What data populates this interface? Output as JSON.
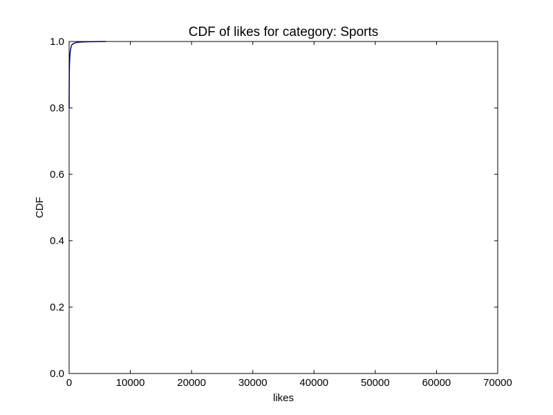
{
  "chart_data": {
    "type": "line",
    "title": "CDF of likes for category: Sports",
    "xlabel": "likes",
    "ylabel": "CDF",
    "xlim": [
      0,
      70000
    ],
    "ylim": [
      0.0,
      1.0
    ],
    "x_ticks": [
      "0",
      "10000",
      "20000",
      "30000",
      "40000",
      "50000",
      "60000",
      "70000"
    ],
    "y_ticks": [
      "0.0",
      "0.2",
      "0.4",
      "0.6",
      "0.8",
      "1.0"
    ],
    "grid": false,
    "legend": "none",
    "series": [
      {
        "color": "#000080",
        "x": [
          0,
          10,
          30,
          60,
          100,
          150,
          200,
          300,
          400,
          500,
          700,
          1000,
          1500,
          2000,
          3000,
          4000,
          5000,
          6000
        ],
        "y": [
          0.8,
          0.86,
          0.9,
          0.93,
          0.95,
          0.962,
          0.972,
          0.982,
          0.988,
          0.991,
          0.994,
          0.996,
          0.998,
          0.9985,
          0.9992,
          0.9996,
          0.9999,
          1.0
        ]
      }
    ]
  }
}
